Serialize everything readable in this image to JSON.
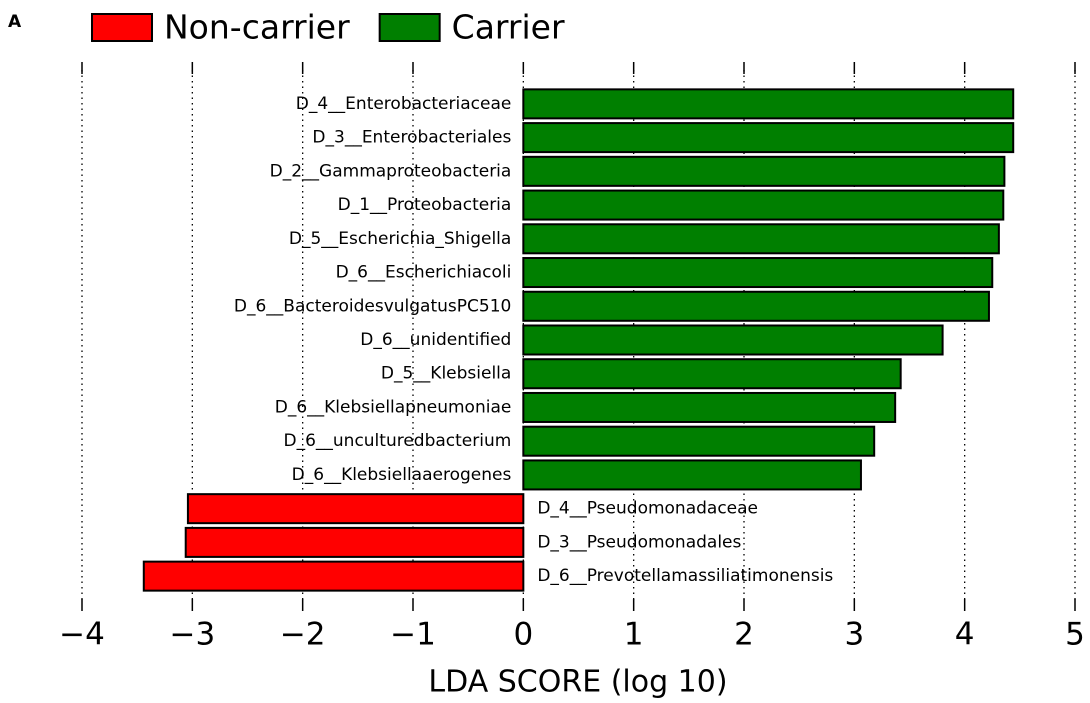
{
  "chart_data": {
    "type": "lda-bar",
    "panel_label": "A",
    "xlabel": "LDA SCORE (log 10)",
    "categories": [
      "D_4__Enterobacteriaceae",
      "D_3__Enterobacteriales",
      "D_2__Gammaproteobacteria",
      "D_1__Proteobacteria",
      "D_5__Escherichia_Shigella",
      "D_6__Escherichiacoli",
      "D_6__BacteroidesvulgatusPC510",
      "D_6__unidentified",
      "D_5__Klebsiella",
      "D_6__Klebsiellapneumoniae",
      "D_6__unculturedbacterium",
      "D_6__Klebsiellaaerogenes",
      "D_4__Pseudomonadaceae",
      "D_3__Pseudomonadales",
      "D_6__Prevotellamassiliatimonensis"
    ],
    "series": [
      {
        "name": "Non-carrier",
        "color": "#ff0000",
        "values": [
          null,
          null,
          null,
          null,
          null,
          null,
          null,
          null,
          null,
          null,
          null,
          null,
          -3.04,
          -3.06,
          -3.44
        ]
      },
      {
        "name": "Carrier",
        "color": "#007f00",
        "values": [
          4.44,
          4.44,
          4.36,
          4.35,
          4.31,
          4.25,
          4.22,
          3.8,
          3.42,
          3.37,
          3.18,
          3.06,
          null,
          null,
          null
        ]
      }
    ],
    "xlim": [
      -4,
      5
    ],
    "xticks": [
      {
        "value": -4,
        "label": "−4"
      },
      {
        "value": -3,
        "label": "−3"
      },
      {
        "value": -2,
        "label": "−2"
      },
      {
        "value": -1,
        "label": "−1"
      },
      0,
      1,
      2,
      3,
      4,
      5
    ],
    "grid": true
  }
}
